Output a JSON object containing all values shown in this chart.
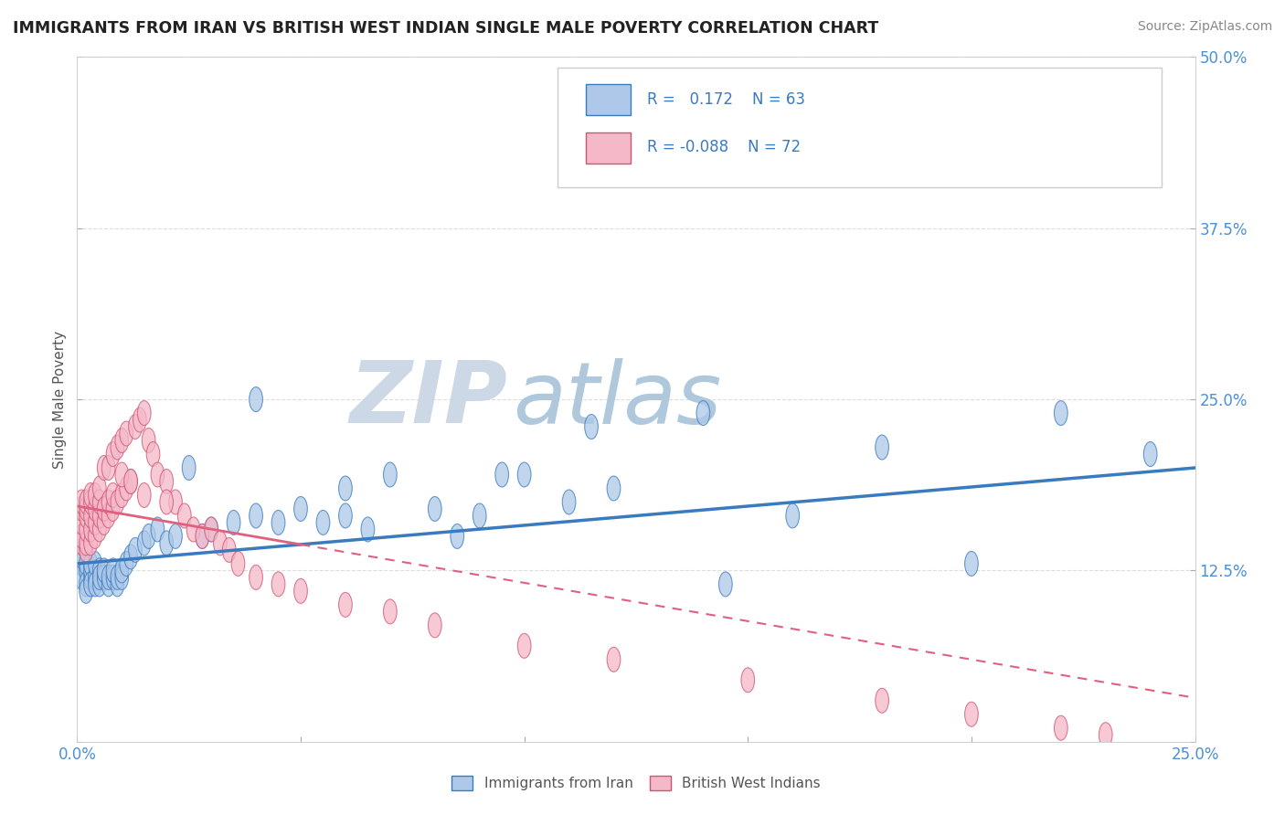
{
  "title": "IMMIGRANTS FROM IRAN VS BRITISH WEST INDIAN SINGLE MALE POVERTY CORRELATION CHART",
  "source": "Source: ZipAtlas.com",
  "ylabel": "Single Male Poverty",
  "xlim": [
    0,
    0.25
  ],
  "ylim": [
    0,
    0.5
  ],
  "xticks": [
    0.0,
    0.05,
    0.1,
    0.15,
    0.2,
    0.25
  ],
  "yticks": [
    0.0,
    0.125,
    0.25,
    0.375,
    0.5
  ],
  "r_blue": 0.172,
  "n_blue": 63,
  "r_pink": -0.088,
  "n_pink": 72,
  "blue_color": "#adc8e8",
  "pink_color": "#f5b8c8",
  "blue_line_color": "#3a7bbf",
  "pink_line_color": "#e06080",
  "watermark_zip": "ZIP",
  "watermark_atlas": "atlas",
  "watermark_color_zip": "#c8d8e8",
  "watermark_color_atlas": "#b8c8d8",
  "legend_label_blue": "Immigrants from Iran",
  "legend_label_pink": "British West Indians",
  "blue_intercept": 0.13,
  "blue_slope_per_unit": 0.28,
  "pink_intercept": 0.172,
  "pink_slope_per_unit": -0.56,
  "blue_x": [
    0.001,
    0.001,
    0.001,
    0.002,
    0.002,
    0.002,
    0.002,
    0.003,
    0.003,
    0.003,
    0.003,
    0.004,
    0.004,
    0.004,
    0.005,
    0.005,
    0.005,
    0.006,
    0.006,
    0.007,
    0.007,
    0.008,
    0.008,
    0.009,
    0.009,
    0.01,
    0.01,
    0.011,
    0.012,
    0.013,
    0.015,
    0.016,
    0.018,
    0.02,
    0.022,
    0.025,
    0.028,
    0.03,
    0.035,
    0.04,
    0.045,
    0.05,
    0.055,
    0.06,
    0.065,
    0.07,
    0.08,
    0.09,
    0.1,
    0.11,
    0.12,
    0.14,
    0.16,
    0.04,
    0.06,
    0.085,
    0.095,
    0.115,
    0.145,
    0.18,
    0.2,
    0.22,
    0.24
  ],
  "blue_y": [
    0.13,
    0.135,
    0.12,
    0.125,
    0.13,
    0.115,
    0.11,
    0.12,
    0.125,
    0.13,
    0.115,
    0.12,
    0.13,
    0.115,
    0.125,
    0.115,
    0.12,
    0.12,
    0.125,
    0.115,
    0.12,
    0.12,
    0.125,
    0.115,
    0.12,
    0.12,
    0.125,
    0.13,
    0.135,
    0.14,
    0.145,
    0.15,
    0.155,
    0.145,
    0.15,
    0.2,
    0.15,
    0.155,
    0.16,
    0.165,
    0.16,
    0.17,
    0.16,
    0.165,
    0.155,
    0.195,
    0.17,
    0.165,
    0.195,
    0.175,
    0.185,
    0.24,
    0.165,
    0.25,
    0.185,
    0.15,
    0.195,
    0.23,
    0.115,
    0.215,
    0.13,
    0.24,
    0.21
  ],
  "pink_x": [
    0.001,
    0.001,
    0.001,
    0.001,
    0.001,
    0.002,
    0.002,
    0.002,
    0.002,
    0.002,
    0.002,
    0.003,
    0.003,
    0.003,
    0.003,
    0.003,
    0.004,
    0.004,
    0.004,
    0.004,
    0.005,
    0.005,
    0.005,
    0.005,
    0.006,
    0.006,
    0.006,
    0.007,
    0.007,
    0.007,
    0.008,
    0.008,
    0.008,
    0.009,
    0.009,
    0.01,
    0.01,
    0.011,
    0.011,
    0.012,
    0.013,
    0.014,
    0.015,
    0.016,
    0.017,
    0.018,
    0.02,
    0.022,
    0.024,
    0.026,
    0.028,
    0.03,
    0.032,
    0.034,
    0.036,
    0.04,
    0.045,
    0.05,
    0.06,
    0.07,
    0.08,
    0.1,
    0.12,
    0.15,
    0.18,
    0.2,
    0.22,
    0.23,
    0.01,
    0.012,
    0.015,
    0.02
  ],
  "pink_y": [
    0.145,
    0.15,
    0.16,
    0.17,
    0.175,
    0.14,
    0.145,
    0.155,
    0.165,
    0.17,
    0.175,
    0.145,
    0.155,
    0.165,
    0.175,
    0.18,
    0.15,
    0.16,
    0.17,
    0.18,
    0.155,
    0.165,
    0.175,
    0.185,
    0.16,
    0.17,
    0.2,
    0.165,
    0.175,
    0.2,
    0.17,
    0.18,
    0.21,
    0.175,
    0.215,
    0.18,
    0.22,
    0.185,
    0.225,
    0.19,
    0.23,
    0.235,
    0.24,
    0.22,
    0.21,
    0.195,
    0.19,
    0.175,
    0.165,
    0.155,
    0.15,
    0.155,
    0.145,
    0.14,
    0.13,
    0.12,
    0.115,
    0.11,
    0.1,
    0.095,
    0.085,
    0.07,
    0.06,
    0.045,
    0.03,
    0.02,
    0.01,
    0.005,
    0.195,
    0.19,
    0.18,
    0.175
  ]
}
